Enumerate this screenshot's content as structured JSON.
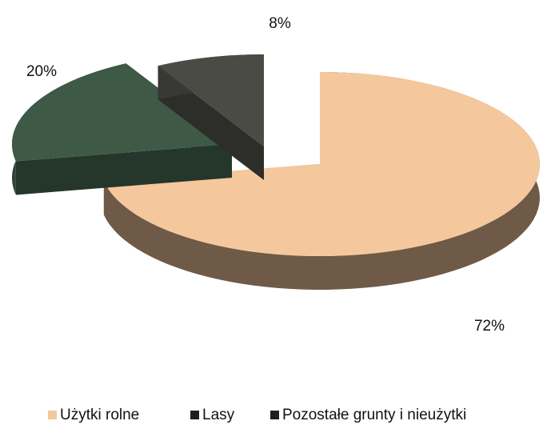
{
  "chart_data": {
    "type": "pie",
    "categories": [
      "Użytki rolne",
      "Lasy",
      "Pozostałe grunty i nieużytki"
    ],
    "values": [
      72,
      20,
      8
    ],
    "value_labels": [
      "72%",
      "20%",
      "8%"
    ],
    "colors": [
      "#f5c79c",
      "#3e5a47",
      "#4b4b45"
    ],
    "legend": "bottom"
  }
}
